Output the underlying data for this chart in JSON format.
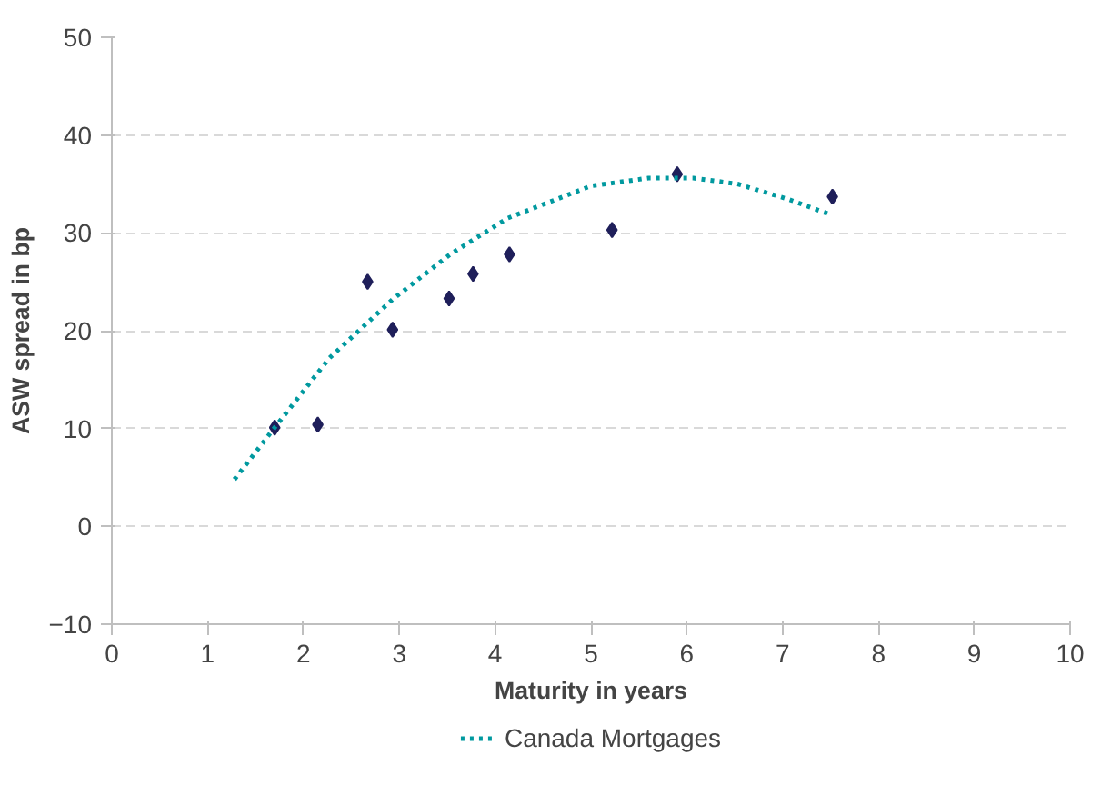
{
  "chart_data": {
    "type": "scatter",
    "xlabel": "Maturity in years",
    "ylabel": "ASW spread in bp",
    "xlim": [
      0,
      10
    ],
    "ylim": [
      -10,
      50
    ],
    "xticks": [
      0,
      1,
      2,
      3,
      4,
      5,
      6,
      7,
      8,
      9,
      10
    ],
    "yticks": [
      -10,
      0,
      10,
      20,
      30,
      40,
      50
    ],
    "grid": "y",
    "legend": "bottom",
    "series": [
      {
        "marker": "diamond",
        "color": "#1f1f5a",
        "x": [
          1.7,
          2.15,
          2.67,
          2.93,
          3.52,
          3.77,
          4.15,
          5.22,
          5.9,
          7.52
        ],
        "values": [
          10.1,
          10.4,
          25.0,
          20.1,
          23.3,
          25.8,
          27.8,
          30.3,
          36.0,
          33.7
        ]
      },
      {
        "type": "line",
        "name": "Canada Mortgages",
        "line_style": "dotted",
        "color": "#00999f",
        "x": [
          1.28,
          1.7,
          2.27,
          2.93,
          3.53,
          4.13,
          5.0,
          5.6,
          6.07,
          6.53,
          7.07,
          7.49
        ],
        "values": [
          4.8,
          10.1,
          17.2,
          23.2,
          27.8,
          31.5,
          34.8,
          35.6,
          35.6,
          35.0,
          33.4,
          31.9
        ]
      }
    ]
  }
}
